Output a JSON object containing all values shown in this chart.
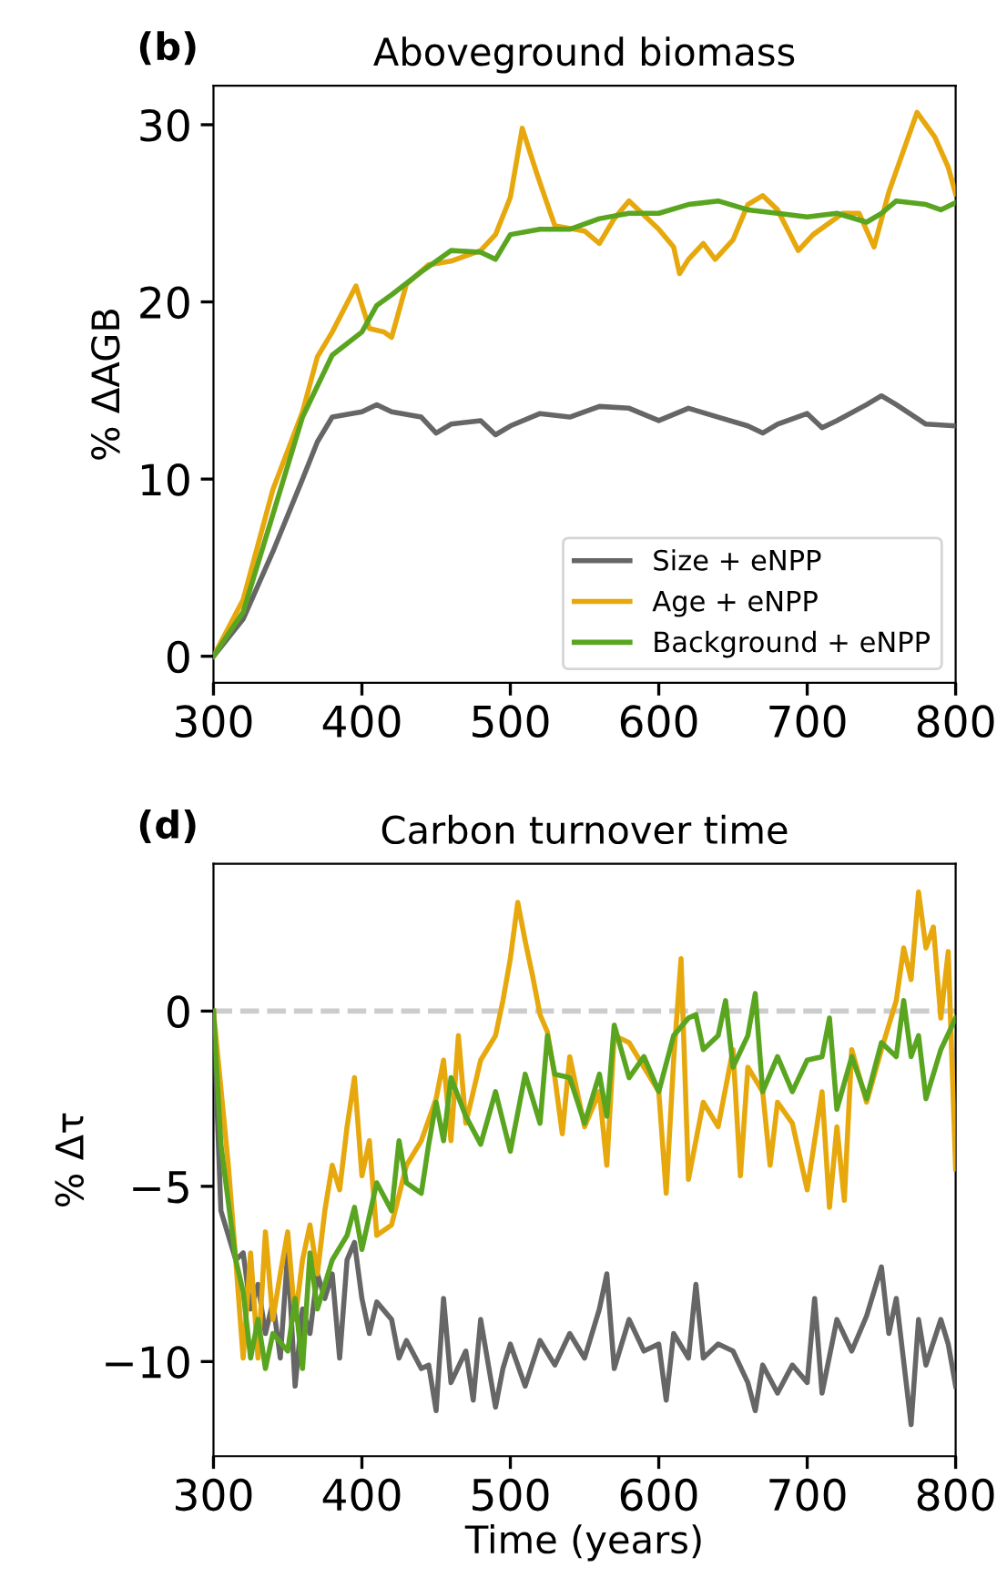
{
  "chart_data": [
    {
      "type": "line",
      "title": "Aboveground biomass",
      "ylabel": "% ΔAGB",
      "annotations": [
        "(b)"
      ],
      "xlim": [
        300,
        800
      ],
      "xticks": [
        300,
        400,
        500,
        600,
        700,
        800
      ],
      "ylim": [
        -1.5,
        32.2
      ],
      "yticks": [
        0,
        10,
        20,
        30
      ],
      "grid": false,
      "legend": "lower right",
      "marker": "none",
      "line_style": "solid",
      "series": [
        {
          "name": "Size + eNPP",
          "color": "#666666",
          "x": [
            300,
            320,
            340,
            360,
            370,
            380,
            400,
            410,
            420,
            440,
            450,
            460,
            480,
            490,
            500,
            520,
            540,
            560,
            580,
            600,
            620,
            640,
            660,
            670,
            680,
            700,
            710,
            720,
            740,
            750,
            760,
            780,
            800
          ],
          "values": [
            0,
            2.1,
            5.9,
            10,
            12.1,
            13.5,
            13.8,
            14.2,
            13.8,
            13.5,
            12.6,
            13.1,
            13.3,
            12.5,
            13,
            13.7,
            13.5,
            14.1,
            14,
            13.3,
            14,
            13.5,
            13,
            12.6,
            13.1,
            13.7,
            12.9,
            13.3,
            14.2,
            14.7,
            14.2,
            13.1,
            13
          ]
        },
        {
          "name": "Age + eNPP",
          "color": "#e6a80c",
          "x": [
            300,
            320,
            340,
            360,
            370,
            380,
            396,
            405,
            415,
            420,
            430,
            445,
            460,
            480,
            490,
            500,
            508,
            518,
            525,
            530,
            550,
            560,
            570,
            580,
            600,
            610,
            614,
            620,
            630,
            638,
            650,
            660,
            670,
            680,
            694,
            704,
            724,
            735,
            745,
            755,
            774,
            786,
            795,
            800
          ],
          "values": [
            0,
            3.2,
            9.4,
            13.8,
            16.9,
            18.3,
            20.9,
            18.5,
            18.3,
            18,
            21,
            22.1,
            22.3,
            22.9,
            23.8,
            25.9,
            29.8,
            27.2,
            25.5,
            24.3,
            24,
            23.3,
            24.7,
            25.7,
            24.1,
            23.1,
            21.6,
            22.4,
            23.3,
            22.4,
            23.5,
            25.5,
            26,
            25.2,
            22.9,
            23.8,
            25,
            25,
            23.1,
            26.2,
            30.7,
            29.3,
            27.6,
            26.1
          ]
        },
        {
          "name": "Background + eNPP",
          "color": "#5aa520",
          "x": [
            300,
            320,
            340,
            360,
            380,
            400,
            410,
            420,
            440,
            460,
            480,
            490,
            500,
            520,
            540,
            560,
            580,
            600,
            620,
            640,
            660,
            680,
            700,
            720,
            740,
            750,
            760,
            780,
            790,
            800
          ],
          "values": [
            0,
            2.5,
            8,
            13.5,
            17,
            18.3,
            19.8,
            20.4,
            21.7,
            22.9,
            22.8,
            22.4,
            23.8,
            24.1,
            24.1,
            24.7,
            25,
            25,
            25.5,
            25.7,
            25.2,
            25,
            24.8,
            25,
            24.5,
            25,
            25.7,
            25.5,
            25.2,
            25.6
          ]
        }
      ]
    },
    {
      "type": "line",
      "title": "Carbon turnover time",
      "xlabel": "Time (years)",
      "ylabel": "% Δτ",
      "annotations": [
        "(d)"
      ],
      "xlim": [
        300,
        800
      ],
      "xticks": [
        300,
        400,
        500,
        600,
        700,
        800
      ],
      "ylim": [
        -12.7,
        4.2
      ],
      "yticks": [
        {
          "value": -10,
          "label": "−10"
        },
        {
          "value": -5,
          "label": "−5"
        },
        0
      ],
      "grid": false,
      "legend": false,
      "marker": "none",
      "line_style": "solid",
      "ref_lines": [
        {
          "axis": "y",
          "value": 0,
          "label": null,
          "color": "#cccccc",
          "line_style": "dashed"
        }
      ],
      "series": [
        {
          "color": "#666666",
          "x": [
            300,
            305,
            315,
            320,
            325,
            330,
            335,
            340,
            345,
            350,
            355,
            360,
            365,
            370,
            375,
            380,
            385,
            390,
            395,
            400,
            405,
            410,
            420,
            425,
            430,
            440,
            445,
            450,
            455,
            460,
            470,
            475,
            480,
            490,
            495,
            500,
            510,
            520,
            530,
            540,
            550,
            560,
            565,
            570,
            580,
            590,
            600,
            605,
            610,
            620,
            625,
            630,
            640,
            650,
            660,
            665,
            670,
            680,
            690,
            700,
            705,
            710,
            720,
            730,
            740,
            750,
            755,
            760,
            770,
            775,
            780,
            790,
            795,
            800
          ],
          "values": [
            0,
            -5.7,
            -7.1,
            -6.9,
            -8.5,
            -7.8,
            -9.2,
            -8.3,
            -9.9,
            -6.9,
            -10.7,
            -8.5,
            -9.2,
            -7.5,
            -8.2,
            -7.5,
            -9.9,
            -7.1,
            -6.6,
            -8.2,
            -9.2,
            -8.3,
            -8.8,
            -9.9,
            -9.4,
            -10.2,
            -10.1,
            -11.4,
            -8.2,
            -10.6,
            -9.7,
            -11.1,
            -8.8,
            -11.3,
            -10.2,
            -9.5,
            -10.7,
            -9.4,
            -10.1,
            -9.2,
            -9.9,
            -8.5,
            -7.5,
            -10.2,
            -8.8,
            -9.7,
            -9.5,
            -11.1,
            -9.2,
            -9.9,
            -7.8,
            -9.9,
            -9.5,
            -9.7,
            -10.6,
            -11.4,
            -10.1,
            -10.9,
            -10.1,
            -10.6,
            -8.2,
            -10.9,
            -8.8,
            -9.7,
            -8.7,
            -7.3,
            -9.2,
            -8.2,
            -11.8,
            -8.8,
            -10.1,
            -8.8,
            -9.5,
            -10.7
          ]
        },
        {
          "color": "#e6a80c",
          "x": [
            300,
            310,
            315,
            320,
            325,
            330,
            335,
            340,
            345,
            350,
            355,
            360,
            365,
            370,
            375,
            380,
            385,
            390,
            395,
            400,
            405,
            410,
            420,
            430,
            440,
            450,
            455,
            460,
            465,
            470,
            480,
            490,
            495,
            500,
            505,
            510,
            515,
            520,
            525,
            530,
            535,
            540,
            550,
            560,
            565,
            570,
            580,
            590,
            600,
            605,
            610,
            615,
            620,
            630,
            640,
            650,
            655,
            660,
            670,
            675,
            680,
            690,
            700,
            710,
            715,
            720,
            725,
            730,
            740,
            750,
            760,
            765,
            770,
            775,
            780,
            785,
            790,
            795,
            800
          ],
          "values": [
            0,
            -4.4,
            -7.1,
            -9.9,
            -6.9,
            -9.9,
            -6.3,
            -8.8,
            -7.5,
            -6.3,
            -8.8,
            -7.1,
            -6.1,
            -7.5,
            -5.7,
            -4.4,
            -5.1,
            -3.3,
            -1.9,
            -4.7,
            -3.7,
            -6.4,
            -6.1,
            -4.4,
            -3.7,
            -2.5,
            -1.4,
            -3.7,
            -0.7,
            -3.2,
            -1.4,
            -0.7,
            0.3,
            1.5,
            3.1,
            2,
            1,
            -0.1,
            -0.6,
            -1.9,
            -3.5,
            -1.3,
            -3.3,
            -2.3,
            -4.4,
            -0.7,
            -0.9,
            -1.6,
            -2.3,
            -5.2,
            -1.4,
            1.5,
            -4.8,
            -2.6,
            -3.3,
            -1.1,
            -4.7,
            -1.6,
            -2.3,
            -4.4,
            -2.6,
            -3.2,
            -5.1,
            -2.3,
            -5.6,
            -3.3,
            -5.4,
            -1.1,
            -2.6,
            -1.1,
            0.3,
            1.8,
            0.9,
            3.4,
            1.8,
            2.4,
            -0.2,
            1.7,
            -4.5
          ]
        },
        {
          "color": "#5aa520",
          "x": [
            300,
            305,
            315,
            320,
            325,
            330,
            335,
            340,
            350,
            355,
            360,
            365,
            370,
            380,
            390,
            395,
            400,
            410,
            420,
            425,
            430,
            440,
            445,
            450,
            455,
            460,
            470,
            480,
            490,
            500,
            510,
            520,
            525,
            530,
            540,
            550,
            560,
            565,
            570,
            580,
            590,
            600,
            610,
            620,
            625,
            630,
            640,
            645,
            650,
            660,
            665,
            670,
            680,
            690,
            700,
            710,
            715,
            720,
            730,
            740,
            750,
            760,
            765,
            770,
            775,
            780,
            790,
            800
          ],
          "values": [
            0,
            -3.8,
            -7.1,
            -8,
            -9.9,
            -8.8,
            -10.2,
            -9.2,
            -9.7,
            -8.2,
            -10.2,
            -6.9,
            -8.5,
            -7.1,
            -6.4,
            -5.6,
            -6.8,
            -4.9,
            -5.7,
            -3.7,
            -4.9,
            -5.2,
            -3.8,
            -2.6,
            -3.7,
            -1.9,
            -3,
            -3.8,
            -2.3,
            -4,
            -1.8,
            -3.2,
            -0.7,
            -1.8,
            -1.9,
            -3.2,
            -1.8,
            -3,
            -0.4,
            -1.9,
            -1.3,
            -2.3,
            -0.7,
            -0.2,
            -0.1,
            -1.1,
            -0.7,
            0.3,
            -1.6,
            -0.7,
            0.5,
            -2.3,
            -1.3,
            -2.3,
            -1.4,
            -1.3,
            -0.2,
            -2.8,
            -1.3,
            -2.5,
            -0.9,
            -1.3,
            0.3,
            -1.3,
            -0.7,
            -2.5,
            -1.1,
            -0.2
          ]
        }
      ]
    }
  ]
}
